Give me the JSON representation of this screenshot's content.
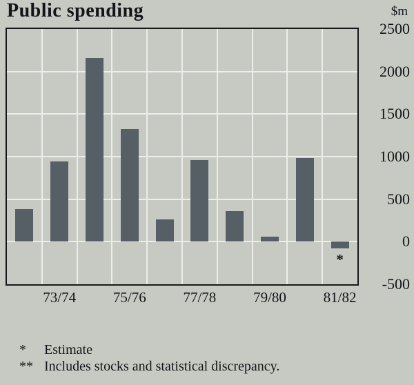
{
  "chart_data": {
    "type": "bar",
    "title": "Public spending",
    "unit_label": "$m",
    "x_tick_labels": [
      "73/74",
      "75/76",
      "77/78",
      "79/80",
      "81/82"
    ],
    "values": [
      380,
      940,
      2160,
      1325,
      260,
      960,
      360,
      60,
      985,
      -80
    ],
    "ylim": [
      -500,
      2500
    ],
    "y_ticks": [
      2500,
      2000,
      1500,
      1000,
      500,
      0,
      -500
    ],
    "grid": true,
    "legend": "none",
    "bar_color": "#565e66",
    "bar_note_marker": "*",
    "bar_note_index": 9
  },
  "footnotes": [
    {
      "marker": "*",
      "text": "Estimate"
    },
    {
      "marker": "**",
      "text": "Includes stocks and statistical discrepancy."
    }
  ]
}
